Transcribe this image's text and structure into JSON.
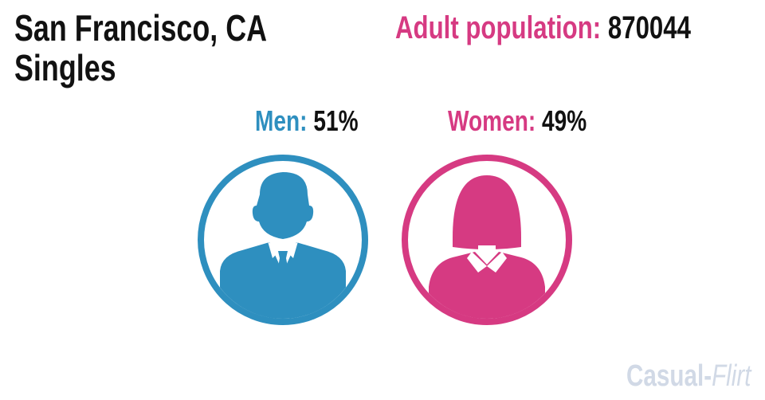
{
  "title": {
    "line1": "San Francisco, CA",
    "line2": "Singles"
  },
  "population": {
    "label": "Adult population:",
    "value": "870044"
  },
  "men": {
    "label": "Men:",
    "value": "51%",
    "percent": 51,
    "color": "#2e8fbf",
    "icon": "man-silhouette-icon"
  },
  "women": {
    "label": "Women:",
    "value": "49%",
    "percent": 49,
    "color": "#d63a82",
    "icon": "woman-silhouette-icon"
  },
  "brand": {
    "part1": "Casual",
    "separator": "-",
    "part2": "Flirt"
  }
}
